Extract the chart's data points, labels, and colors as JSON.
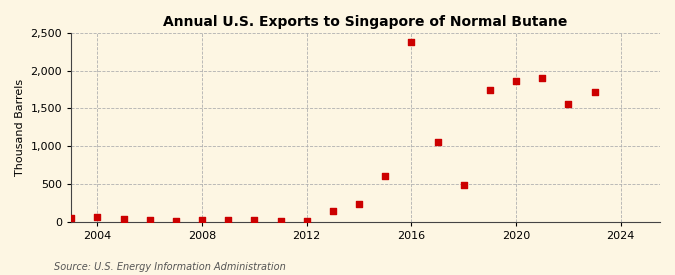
{
  "title": "Annual U.S. Exports to Singapore of Normal Butane",
  "ylabel": "Thousand Barrels",
  "source": "Source: U.S. Energy Information Administration",
  "background_color": "#fdf6e3",
  "plot_bg_color": "#fdf6e3",
  "dot_color": "#cc0000",
  "years": [
    2003,
    2004,
    2005,
    2006,
    2007,
    2008,
    2009,
    2010,
    2011,
    2012,
    2013,
    2014,
    2015,
    2016,
    2017,
    2018,
    2019,
    2020,
    2021,
    2022,
    2023,
    2024
  ],
  "values": [
    55,
    60,
    30,
    20,
    5,
    20,
    20,
    20,
    15,
    5,
    140,
    230,
    600,
    2380,
    1060,
    490,
    1740,
    1860,
    1900,
    1560,
    1720,
    null
  ],
  "xlim": [
    2003.0,
    2025.5
  ],
  "ylim": [
    0,
    2500
  ],
  "yticks": [
    0,
    500,
    1000,
    1500,
    2000,
    2500
  ],
  "xticks": [
    2004,
    2008,
    2012,
    2016,
    2020,
    2024
  ],
  "title_fontsize": 10,
  "label_fontsize": 8,
  "tick_fontsize": 8,
  "source_fontsize": 7
}
